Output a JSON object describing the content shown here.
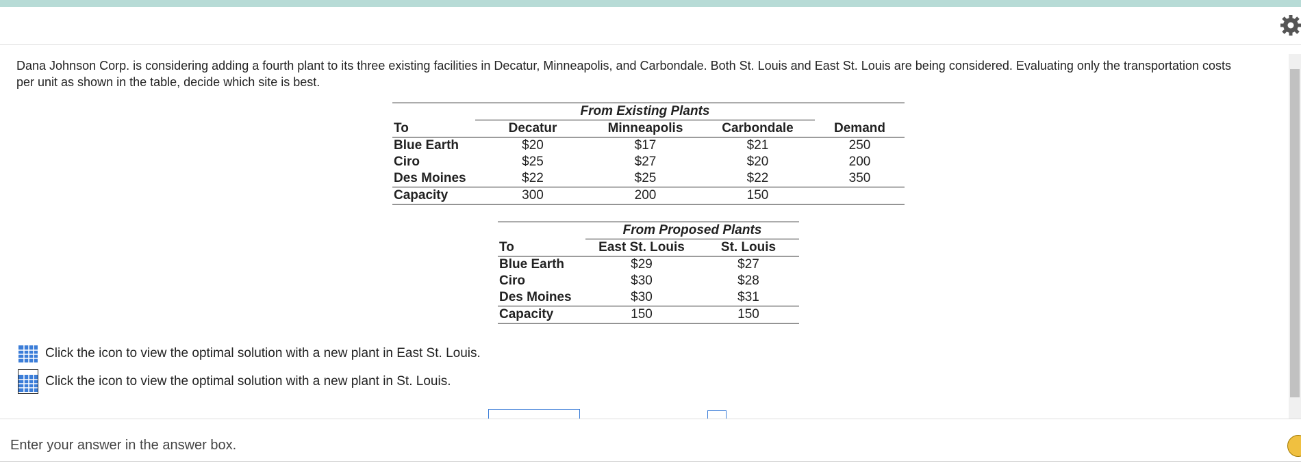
{
  "problem": {
    "text": "Dana Johnson Corp. is considering adding a fourth plant to its three existing facilities in Decatur, Minneapolis, and Carbondale. Both St. Louis and East St. Louis are being considered. Evaluating only the transportation costs per unit as shown in the table, decide which site is best."
  },
  "table1": {
    "group": "From Existing Plants",
    "headers": [
      "To",
      "Decatur",
      "Minneapolis",
      "Carbondale",
      "Demand"
    ],
    "rows": [
      [
        "Blue Earth",
        "$20",
        "$17",
        "$21",
        "250"
      ],
      [
        "Ciro",
        "$25",
        "$27",
        "$20",
        "200"
      ],
      [
        "Des Moines",
        "$22",
        "$25",
        "$22",
        "350"
      ],
      [
        "Capacity",
        "300",
        "200",
        "150"
      ]
    ]
  },
  "table2": {
    "group": "From Proposed Plants",
    "headers": [
      "To",
      "East St. Louis",
      "St. Louis"
    ],
    "rows": [
      [
        "Blue Earth",
        "$29",
        "$27"
      ],
      [
        "Ciro",
        "$30",
        "$28"
      ],
      [
        "Des Moines",
        "$30",
        "$31"
      ],
      [
        "Capacity",
        "150",
        "150"
      ]
    ]
  },
  "links": [
    "Click the icon to view the optimal solution with a new plant in East St. Louis.",
    "Click the icon to view the optimal solution with a new plant in St. Louis."
  ],
  "footer": {
    "text": "Enter your answer in the answer box."
  }
}
